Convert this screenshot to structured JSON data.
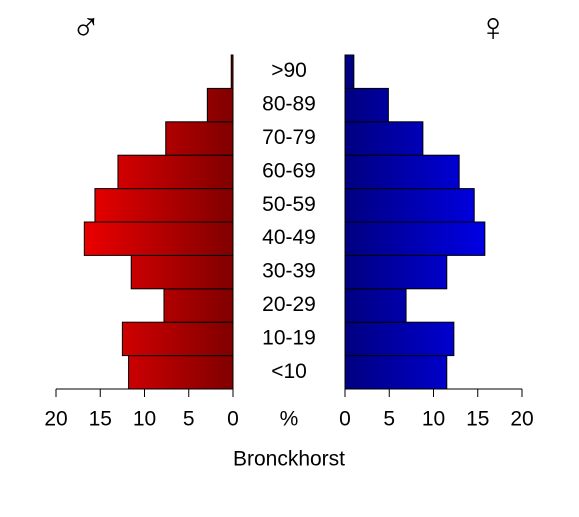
{
  "chart_data": {
    "type": "pyramid",
    "title": "Bronckhorst",
    "xlabel": "%",
    "categories": [
      "<10",
      "10-19",
      "20-29",
      "30-39",
      "40-49",
      "50-59",
      "60-69",
      "70-79",
      "80-89",
      ">90"
    ],
    "series": [
      {
        "name": "♂",
        "color": "#ff0000",
        "values": [
          11.8,
          12.5,
          7.8,
          11.5,
          16.8,
          15.6,
          13.0,
          7.6,
          2.9,
          0.2
        ]
      },
      {
        "name": "♀",
        "color": "#0000ff",
        "values": [
          11.5,
          12.3,
          6.9,
          11.5,
          15.8,
          14.6,
          12.9,
          8.8,
          4.9,
          1.0
        ]
      }
    ],
    "xlim": [
      0,
      20
    ],
    "xticks": [
      0,
      5,
      10,
      15,
      20
    ]
  }
}
